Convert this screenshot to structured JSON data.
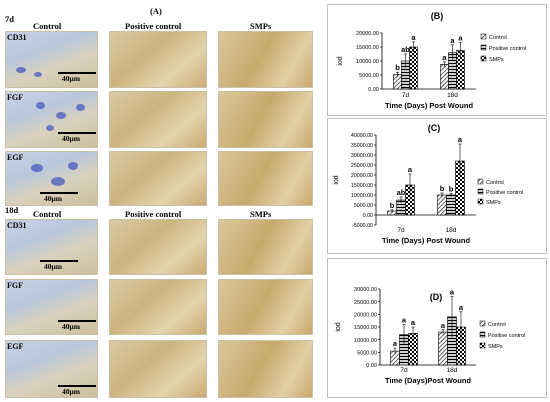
{
  "panel_A": {
    "label": "(A)",
    "day7_label": "7d",
    "day18_label": "18d",
    "columns_7d": [
      "Control",
      "Positive control",
      "SMPs"
    ],
    "columns_18d": [
      "Control",
      "Positive control",
      "SMPs"
    ],
    "rows_7d": [
      "CD31",
      "FGF",
      "EGF"
    ],
    "rows_18d": [
      "CD31",
      "FGF",
      "EGF"
    ],
    "scale_text": "40μm"
  },
  "chart_data": [
    {
      "type": "bar",
      "panel": "(B)",
      "categories": [
        "7d",
        "18d"
      ],
      "series": [
        {
          "name": "Control",
          "values": [
            5200,
            8800
          ]
        },
        {
          "name": "Positive control",
          "values": [
            10000,
            13000
          ]
        },
        {
          "name": "SMPs",
          "values": [
            15000,
            13800
          ]
        }
      ],
      "errors": [
        [
          800,
          900
        ],
        [
          2500,
          2800
        ],
        [
          1800,
          2800
        ]
      ],
      "letters": [
        [
          "b",
          "a"
        ],
        [
          "ab",
          "a"
        ],
        [
          "a",
          "a"
        ]
      ],
      "xlabel": "Time (Days) Post Wound",
      "ylabel": "iod",
      "ylim": [
        0,
        20000
      ],
      "yticks": [
        "0.00",
        "5000.00",
        "10000.00",
        "15000.00",
        "20000.00"
      ],
      "legend_position": "right"
    },
    {
      "type": "bar",
      "panel": "(C)",
      "categories": [
        "7d",
        "18d"
      ],
      "series": [
        {
          "name": "Control",
          "values": [
            2000,
            10000
          ]
        },
        {
          "name": "Positive control",
          "values": [
            7500,
            10000
          ]
        },
        {
          "name": "SMPs",
          "values": [
            15000,
            27000
          ]
        }
      ],
      "errors": [
        [
          600,
          1000
        ],
        [
          1500,
          800
        ],
        [
          5500,
          8500
        ]
      ],
      "letters": [
        [
          "b",
          "b"
        ],
        [
          "ab",
          "b"
        ],
        [
          "a",
          "a"
        ]
      ],
      "xlabel": "Time (Days) Post Wound",
      "ylabel": "iod",
      "ylim": [
        -5000,
        40000
      ],
      "yticks": [
        "-5000.00",
        "0.00",
        "5000.00",
        "10000.00",
        "15000.00",
        "20000.00",
        "25000.00",
        "30000.00",
        "35000.00",
        "40000.00"
      ],
      "legend_position": "right"
    },
    {
      "type": "bar",
      "panel": "(D)",
      "categories": [
        "7d",
        "18d"
      ],
      "series": [
        {
          "name": "Control",
          "values": [
            5500,
            13000
          ]
        },
        {
          "name": "Positive control",
          "values": [
            12000,
            19000
          ]
        },
        {
          "name": "SMPs",
          "values": [
            12500,
            15000
          ]
        }
      ],
      "errors": [
        [
          1200,
          900
        ],
        [
          4000,
          8000
        ],
        [
          2500,
          6000
        ]
      ],
      "letters": [
        [
          "a",
          "a"
        ],
        [
          "a",
          "a"
        ],
        [
          "a",
          "a"
        ]
      ],
      "xlabel": "Time (Days)Post Wound",
      "ylabel": "iod",
      "ylim": [
        0,
        30000
      ],
      "yticks": [
        "0.00",
        "5000.00",
        "10000.00",
        "15000.00",
        "20000.00",
        "25000.00",
        "30000.00"
      ],
      "legend_position": "right"
    }
  ]
}
